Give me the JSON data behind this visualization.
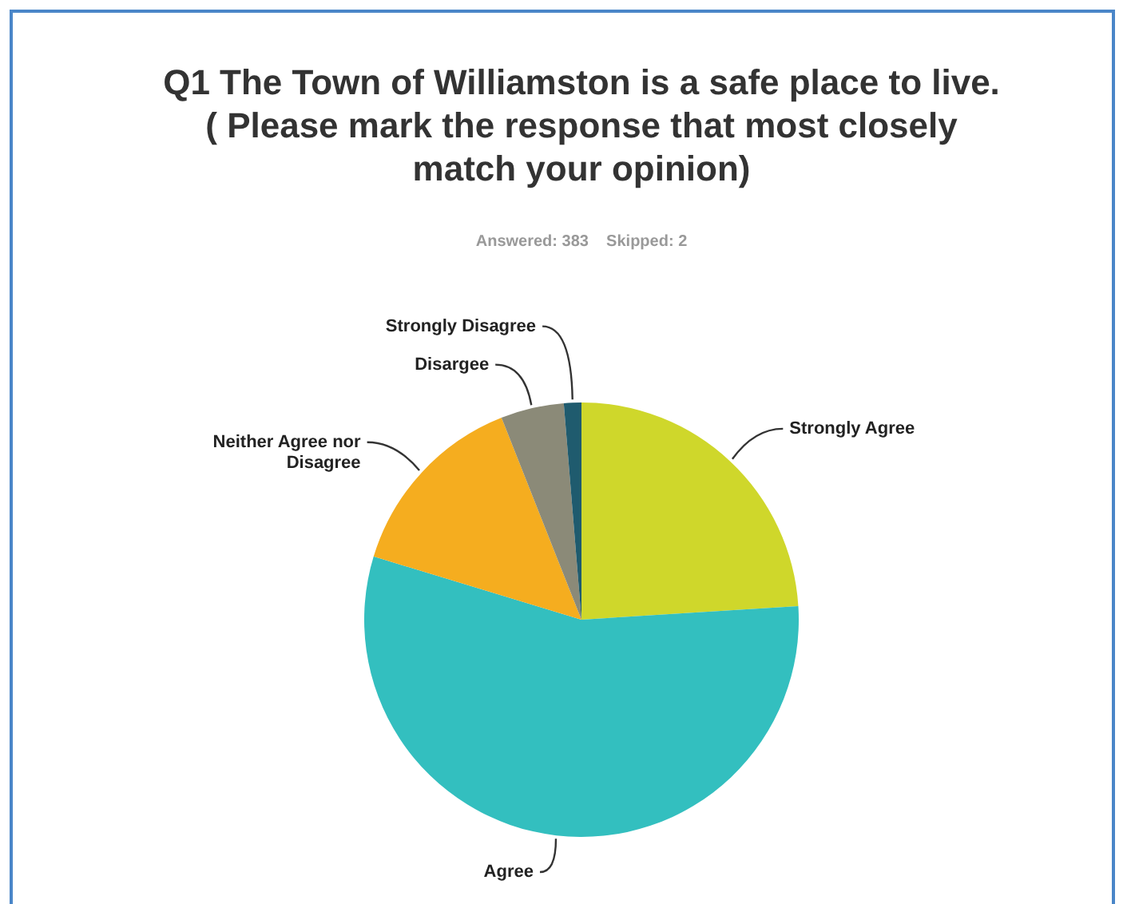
{
  "chart_data": {
    "type": "pie",
    "title": "Q1 The Town of Williamston is a safe place to live. ( Please mark the response that most closely match your opinion)",
    "subtitle": "Answered: 383    Skipped: 2",
    "categories": [
      "Strongly Agree",
      "Agree",
      "Neither Agree nor Disagree",
      "Disargee",
      "Strongly Disagree"
    ],
    "values": [
      24,
      55.7,
      14.3,
      4.7,
      1.3
    ],
    "colors": [
      "#cfd72b",
      "#33bfbf",
      "#f5ad1f",
      "#8b8a78",
      "#1f5b6e"
    ],
    "legend": false
  }
}
